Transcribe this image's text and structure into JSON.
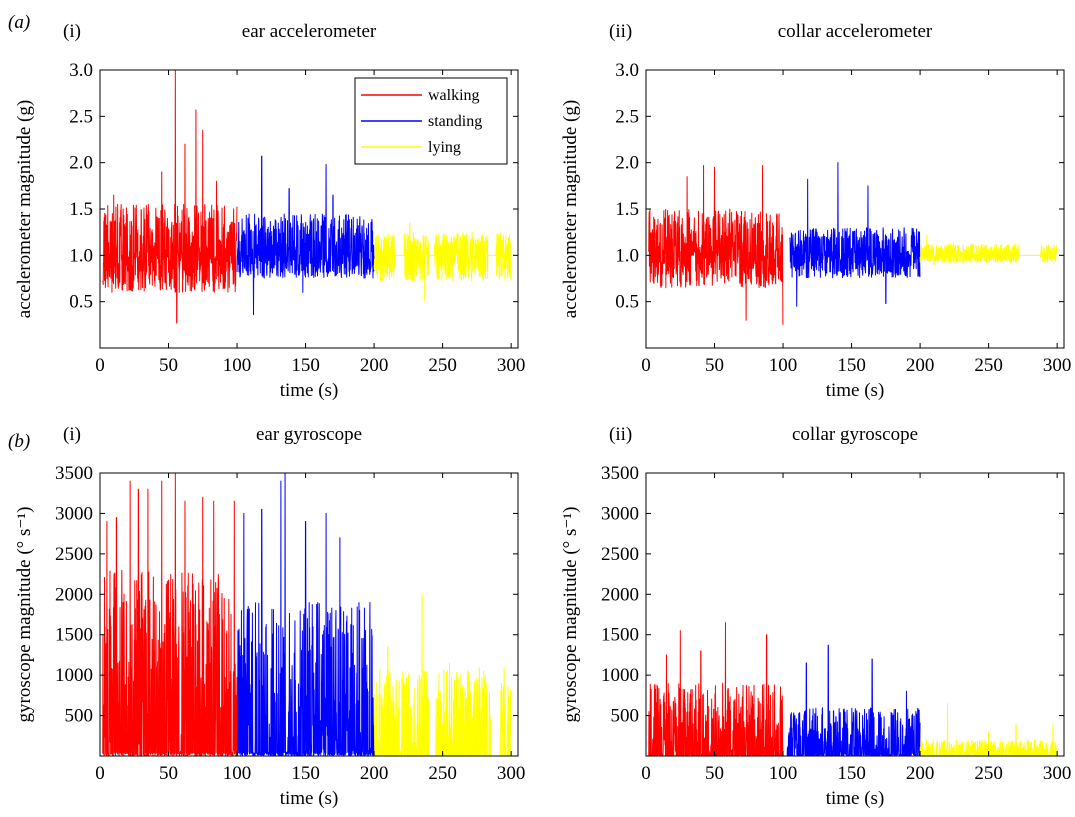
{
  "panel_labels": {
    "a": "(a)",
    "b": "(b)"
  },
  "legend": [
    {
      "label": "walking",
      "color": "#ff0000"
    },
    {
      "label": "standing",
      "color": "#0000ff"
    },
    {
      "label": "lying",
      "color": "#ffff00"
    }
  ],
  "chart_data": [
    {
      "id": "ear-acc",
      "sublabel": "(i)",
      "type": "line",
      "title": "ear accelerometer",
      "xlabel": "time (s)",
      "ylabel": "accelerometer magnitude (g)",
      "xlim": [
        0,
        305
      ],
      "ylim": [
        0,
        3.0
      ],
      "xticks": [
        0,
        50,
        100,
        150,
        200,
        250,
        300
      ],
      "yticks": [
        0.5,
        1.0,
        1.5,
        2.0,
        2.5,
        3.0
      ],
      "ytick_labels": [
        "0.5",
        "1.0",
        "1.5",
        "2.0",
        "2.5",
        "3.0"
      ],
      "legend": true,
      "series": [
        {
          "name": "walking",
          "color": "#ff0000",
          "x_range": [
            2,
            100
          ],
          "baseline": 1.0,
          "typical_range": [
            0.6,
            1.55
          ],
          "peaks": [
            [
              55,
              3.0
            ],
            [
              56,
              0.27
            ],
            [
              45,
              1.9
            ],
            [
              62,
              2.2
            ],
            [
              70,
              2.57
            ],
            [
              75,
              2.35
            ],
            [
              10,
              1.65
            ],
            [
              85,
              1.8
            ]
          ]
        },
        {
          "name": "standing",
          "color": "#0000ff",
          "x_range": [
            100,
            200
          ],
          "baseline": 1.0,
          "typical_range": [
            0.75,
            1.45
          ],
          "peaks": [
            [
              118,
              2.07
            ],
            [
              112,
              0.36
            ],
            [
              165,
              1.98
            ],
            [
              138,
              1.72
            ],
            [
              170,
              1.65
            ],
            [
              148,
              0.6
            ]
          ]
        },
        {
          "name": "lying",
          "color": "#ffff00",
          "x_range": [
            200,
            300
          ],
          "baseline": 1.0,
          "typical_range": [
            0.72,
            1.25
          ],
          "peaks": [
            [
              237,
              0.5
            ],
            [
              226,
              1.35
            ],
            [
              228,
              0.72
            ]
          ],
          "flat_gaps": [
            [
              215,
              222
            ],
            [
              240,
              244
            ],
            [
              283,
              289
            ]
          ]
        }
      ]
    },
    {
      "id": "collar-acc",
      "sublabel": "(ii)",
      "type": "line",
      "title": "collar accelerometer",
      "xlabel": "time (s)",
      "ylabel": "accelerometer magnitude (g)",
      "xlim": [
        0,
        305
      ],
      "ylim": [
        0,
        3.0
      ],
      "xticks": [
        0,
        50,
        100,
        150,
        200,
        250,
        300
      ],
      "yticks": [
        0.5,
        1.0,
        1.5,
        2.0,
        2.5,
        3.0
      ],
      "ytick_labels": [
        "0.5",
        "1.0",
        "1.5",
        "2.0",
        "2.5",
        "3.0"
      ],
      "legend": false,
      "series": [
        {
          "name": "walking",
          "color": "#ff0000",
          "x_range": [
            2,
            100
          ],
          "baseline": 1.0,
          "typical_range": [
            0.65,
            1.5
          ],
          "peaks": [
            [
              42,
              1.97
            ],
            [
              50,
              1.95
            ],
            [
              85,
              1.97
            ],
            [
              73,
              0.3
            ],
            [
              100,
              0.25
            ],
            [
              30,
              1.85
            ]
          ]
        },
        {
          "name": "standing",
          "color": "#0000ff",
          "x_range": [
            105,
            200
          ],
          "baseline": 1.0,
          "typical_range": [
            0.75,
            1.3
          ],
          "peaks": [
            [
              140,
              2.0
            ],
            [
              118,
              1.82
            ],
            [
              162,
              1.75
            ],
            [
              110,
              0.45
            ],
            [
              175,
              0.48
            ]
          ]
        },
        {
          "name": "lying",
          "color": "#ffff00",
          "x_range": [
            200,
            300
          ],
          "baseline": 1.0,
          "typical_range": [
            0.92,
            1.12
          ],
          "peaks": [
            [
              205,
              1.22
            ],
            [
              210,
              0.9
            ]
          ],
          "flat_gaps": [
            [
              272,
              288
            ]
          ]
        }
      ]
    },
    {
      "id": "ear-gyro",
      "sublabel": "(i)",
      "type": "line",
      "title": "ear gyroscope",
      "xlabel": "time (s)",
      "ylabel": "gyroscope magnitude (° s⁻¹)",
      "xlim": [
        0,
        305
      ],
      "ylim": [
        0,
        3500
      ],
      "xticks": [
        0,
        50,
        100,
        150,
        200,
        250,
        300
      ],
      "yticks": [
        500,
        1000,
        1500,
        2000,
        2500,
        3000,
        3500
      ],
      "ytick_labels": [
        "500",
        "1000",
        "1500",
        "2000",
        "2500",
        "3000",
        "3500"
      ],
      "legend": false,
      "series": [
        {
          "name": "walking",
          "color": "#ff0000",
          "x_range": [
            2,
            100
          ],
          "baseline": 50,
          "typical_range": [
            0,
            2300
          ],
          "peaks": [
            [
              22,
              3400
            ],
            [
              28,
              3300
            ],
            [
              45,
              3400
            ],
            [
              55,
              3500
            ],
            [
              35,
              3300
            ],
            [
              62,
              3150
            ],
            [
              75,
              3200
            ],
            [
              83,
              3150
            ],
            [
              12,
              2950
            ],
            [
              5,
              2900
            ],
            [
              98,
              3150
            ]
          ]
        },
        {
          "name": "standing",
          "color": "#0000ff",
          "x_range": [
            100,
            200
          ],
          "baseline": 50,
          "typical_range": [
            0,
            1900
          ],
          "peaks": [
            [
              135,
              3500
            ],
            [
              132,
              3400
            ],
            [
              118,
              3050
            ],
            [
              150,
              2900
            ],
            [
              165,
              3000
            ],
            [
              175,
              2700
            ],
            [
              105,
              3000
            ]
          ]
        },
        {
          "name": "lying",
          "color": "#ffff00",
          "x_range": [
            200,
            300
          ],
          "baseline": 0,
          "typical_range": [
            0,
            1100
          ],
          "peaks": [
            [
              235,
              2000
            ],
            [
              210,
              1350
            ],
            [
              255,
              1150
            ],
            [
              280,
              1050
            ]
          ],
          "flat_gaps": [
            [
              240,
              245
            ],
            [
              285,
              292
            ]
          ]
        }
      ]
    },
    {
      "id": "collar-gyro",
      "sublabel": "(ii)",
      "type": "line",
      "title": "collar gyroscope",
      "xlabel": "time (s)",
      "ylabel": "gyroscope magnitude (° s⁻¹)",
      "xlim": [
        0,
        305
      ],
      "ylim": [
        0,
        3500
      ],
      "xticks": [
        0,
        50,
        100,
        150,
        200,
        250,
        300
      ],
      "yticks": [
        500,
        1000,
        1500,
        2000,
        2500,
        3000,
        3500
      ],
      "ytick_labels": [
        "500",
        "1000",
        "1500",
        "2000",
        "2500",
        "3000",
        "3500"
      ],
      "legend": false,
      "series": [
        {
          "name": "walking",
          "color": "#ff0000",
          "x_range": [
            2,
            100
          ],
          "baseline": 20,
          "typical_range": [
            0,
            900
          ],
          "peaks": [
            [
              25,
              1550
            ],
            [
              58,
              1650
            ],
            [
              88,
              1500
            ],
            [
              40,
              1300
            ],
            [
              15,
              1250
            ]
          ]
        },
        {
          "name": "standing",
          "color": "#0000ff",
          "x_range": [
            103,
            200
          ],
          "baseline": 20,
          "typical_range": [
            0,
            600
          ],
          "peaks": [
            [
              133,
              1370
            ],
            [
              165,
              1200
            ],
            [
              117,
              1150
            ],
            [
              190,
              800
            ]
          ]
        },
        {
          "name": "lying",
          "color": "#ffff00",
          "x_range": [
            200,
            300
          ],
          "baseline": 0,
          "typical_range": [
            0,
            200
          ],
          "peaks": [
            [
              220,
              650
            ],
            [
              270,
              400
            ],
            [
              297,
              400
            ],
            [
              250,
              300
            ]
          ]
        }
      ]
    }
  ]
}
